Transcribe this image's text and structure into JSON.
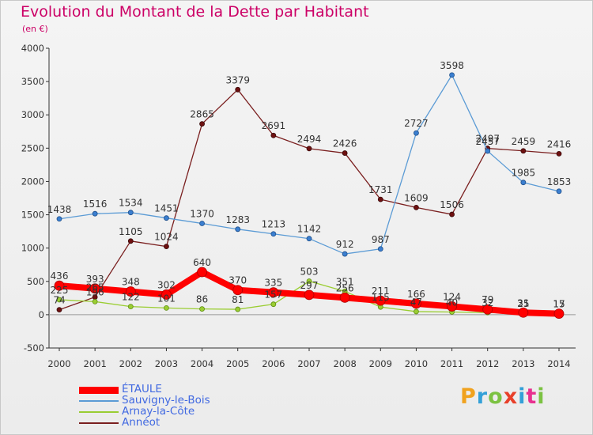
{
  "title": "Evolution du Montant de la Dette par Habitant",
  "subtitle": "(en €)",
  "logo": {
    "text": "Proxiti",
    "letter_colors": [
      "#f0a21e",
      "#33a0d8",
      "#7cc242",
      "#e8402a",
      "#33a0d8",
      "#e83090",
      "#7cc242"
    ]
  },
  "chart_data": {
    "type": "line",
    "x": [
      "2000",
      "2001",
      "2002",
      "2003",
      "2004",
      "2005",
      "2006",
      "2007",
      "2008",
      "2009",
      "2010",
      "2011",
      "2012",
      "2013",
      "2014"
    ],
    "yticks": [
      "-500",
      "0",
      "500",
      "1000",
      "1500",
      "2000",
      "2500",
      "3000",
      "3500",
      "4000"
    ],
    "ylim": [
      -500,
      4000
    ],
    "grid": false,
    "legend_position": "bottom-left",
    "series": [
      {
        "name": "Annéot",
        "color": "#7a1f1f",
        "values": [
          74,
          265,
          1105,
          1024,
          2865,
          3379,
          2691,
          2494,
          2426,
          1731,
          1609,
          1506,
          2497,
          2459,
          2416
        ],
        "labels": [
          "74",
          "265",
          "1105",
          "1024",
          "2865",
          "3379",
          "2691",
          "2494",
          "2426",
          "1731",
          "1609",
          "1506",
          "2497",
          "2459",
          "2416"
        ]
      },
      {
        "name": "Sauvigny-le-Bois",
        "color": "#5b9bd5",
        "values": [
          1438,
          1516,
          1534,
          1451,
          1370,
          1283,
          1213,
          1142,
          912,
          987,
          2727,
          3598,
          2457,
          1985,
          1853
        ],
        "labels": [
          "1438",
          "1516",
          "1534",
          "1451",
          "1370",
          "1283",
          "1213",
          "1142",
          "912",
          "987",
          "2727",
          "3598",
          "2457",
          "1985",
          "1853"
        ]
      },
      {
        "name": "Arnay-la-Côte",
        "color": "#9acd32",
        "values": [
          225,
          196,
          122,
          101,
          86,
          81,
          157,
          503,
          351,
          115,
          47,
          40,
          32,
          25,
          17
        ],
        "labels": [
          "225",
          "196",
          "122",
          "101",
          "86",
          "81",
          "157",
          "503",
          "351",
          "115",
          "47",
          "40",
          "32",
          "25",
          "17"
        ]
      },
      {
        "name": "ÉTAULE",
        "color": "#ff0000",
        "values": [
          436,
          393,
          348,
          302,
          640,
          370,
          335,
          297,
          256,
          211,
          166,
          124,
          79,
          31,
          15
        ],
        "labels": [
          "436",
          "393",
          "348",
          "302",
          "640",
          "370",
          "335",
          "297",
          "256",
          "211",
          "166",
          "124",
          "79",
          "31",
          "15"
        ]
      }
    ],
    "legend_order": [
      "ÉTAULE",
      "Sauvigny-le-Bois",
      "Arnay-la-Côte",
      "Annéot"
    ]
  }
}
